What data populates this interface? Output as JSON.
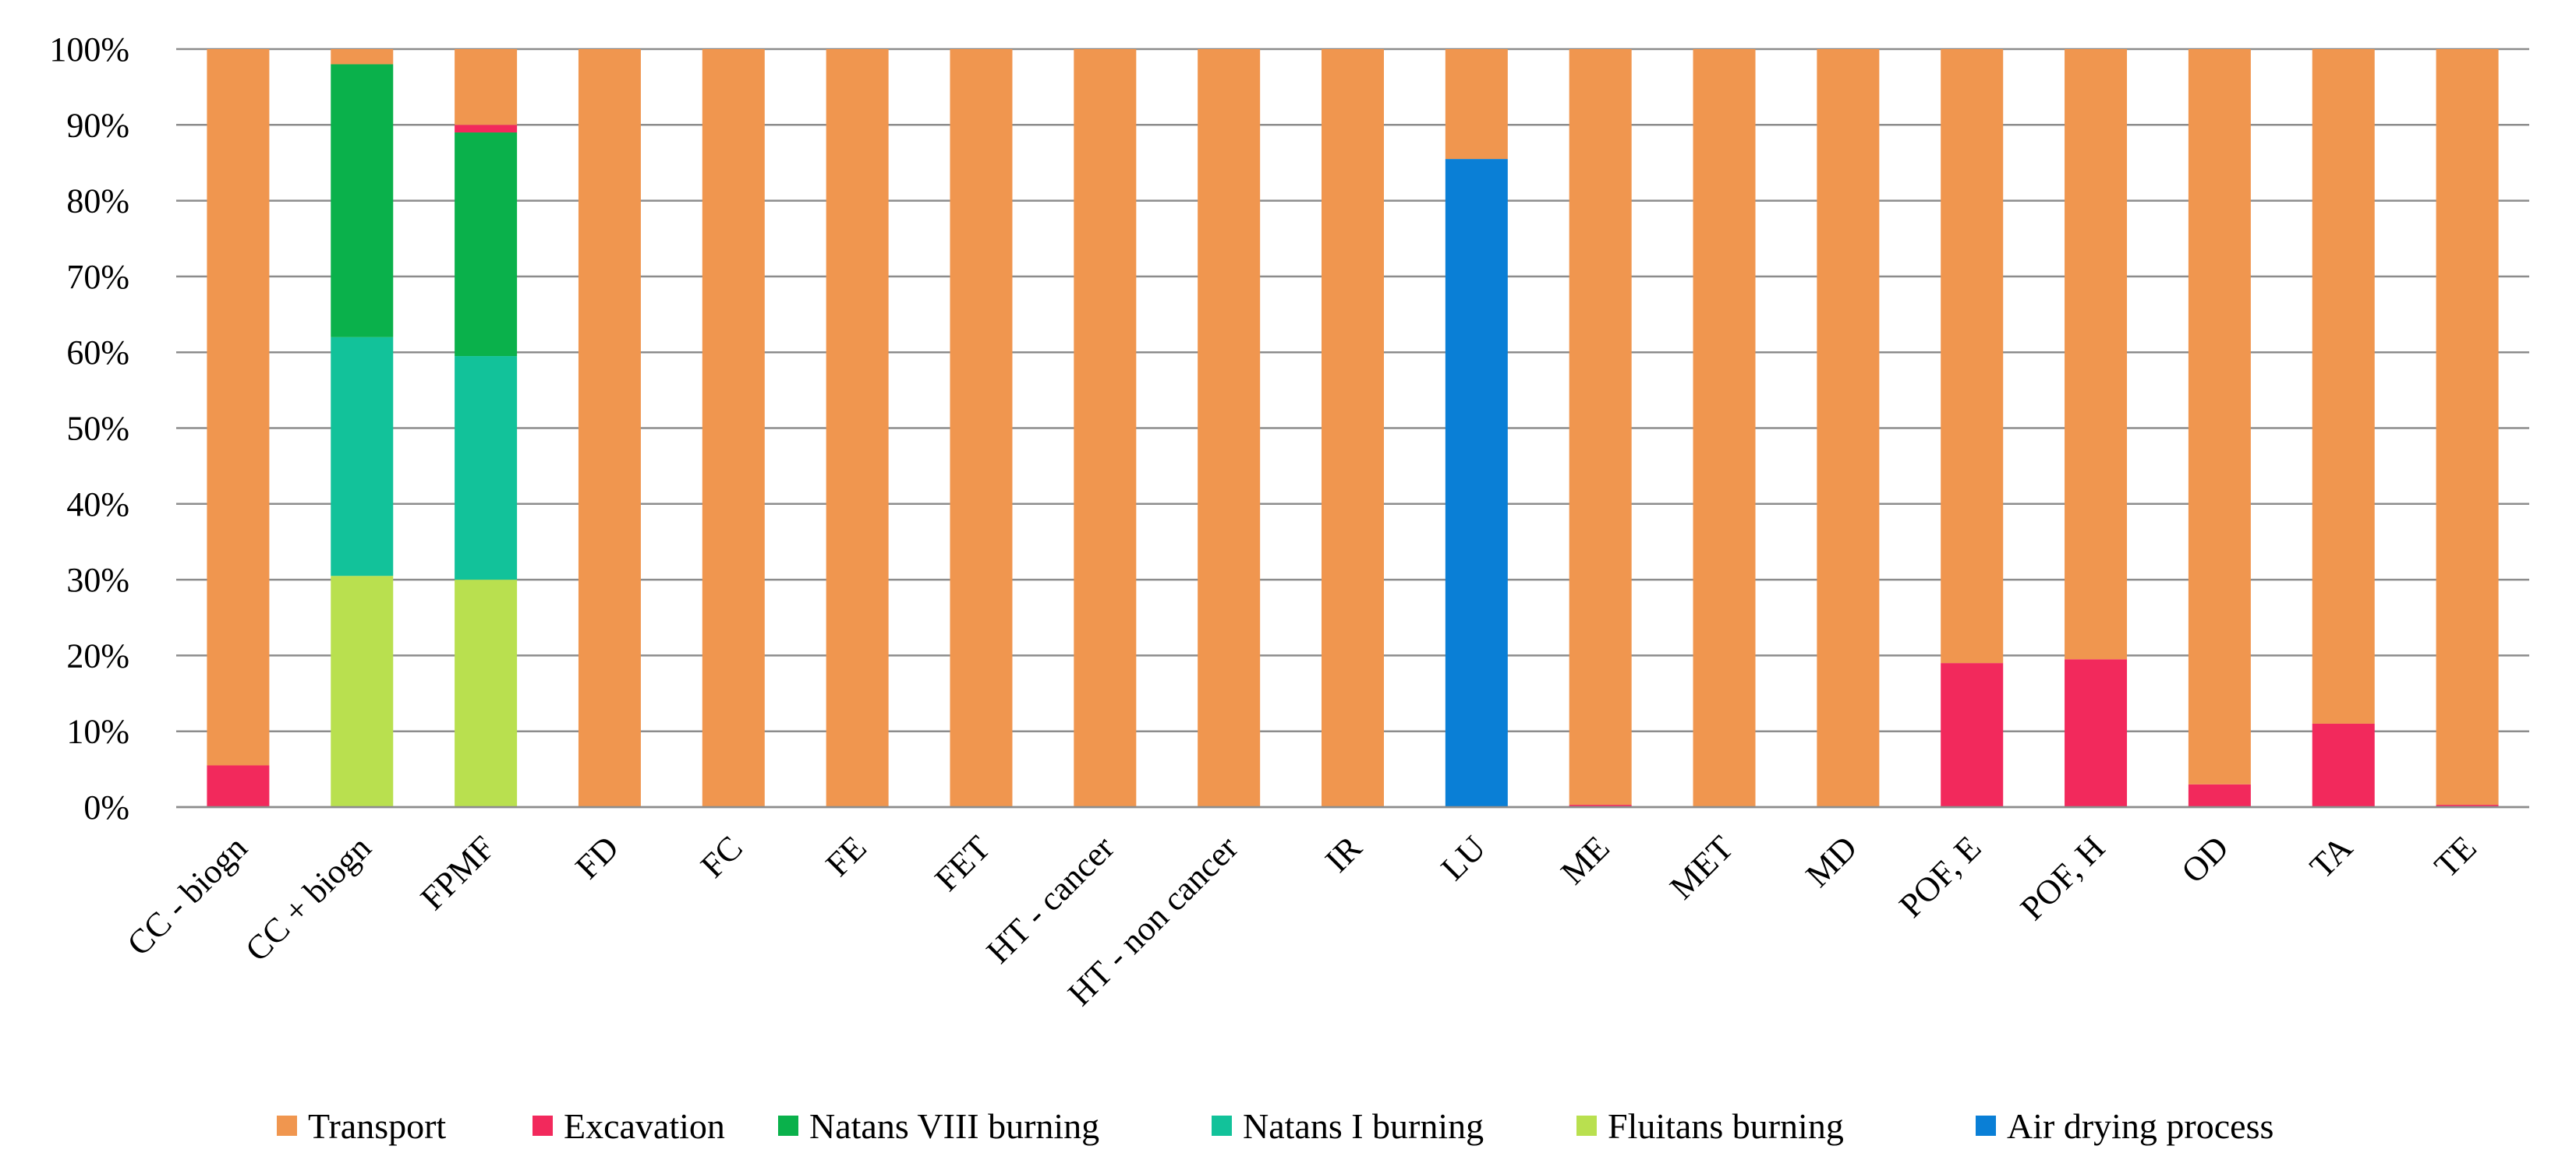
{
  "chart_data": {
    "type": "bar",
    "stacked": true,
    "normalized_percent": true,
    "title": "",
    "xlabel": "",
    "ylabel": "",
    "ylim": [
      0,
      100
    ],
    "y_ticks": [
      "0%",
      "10%",
      "20%",
      "30%",
      "40%",
      "50%",
      "60%",
      "70%",
      "80%",
      "90%",
      "100%"
    ],
    "grid": true,
    "legend_position": "bottom",
    "categories": [
      "CC - biogn",
      "CC + biogn",
      "FPMF",
      "FD",
      "FC",
      "FE",
      "FET",
      "HT - cancer",
      "HT - non cancer",
      "IR",
      "LU",
      "ME",
      "MET",
      "MD",
      "POF, E",
      "POF, H",
      "OD",
      "TA",
      "TE"
    ],
    "series": [
      {
        "name": "Fluitans burning",
        "color": "#b9e04f",
        "values": [
          0,
          30.5,
          30,
          0,
          0,
          0,
          0,
          0,
          0,
          0,
          0,
          0,
          0,
          0,
          0,
          0,
          0,
          0,
          0
        ]
      },
      {
        "name": "Natans I burning",
        "color": "#12c29a",
        "values": [
          0,
          31.5,
          29.5,
          0,
          0,
          0,
          0,
          0,
          0,
          0,
          0,
          0,
          0,
          0,
          0,
          0,
          0,
          0,
          0
        ]
      },
      {
        "name": "Natans VIII burning",
        "color": "#0ab14b",
        "values": [
          0,
          36,
          29.5,
          0,
          0,
          0,
          0,
          0,
          0,
          0,
          0,
          0,
          0,
          0,
          0,
          0,
          0,
          0,
          0
        ]
      },
      {
        "name": "Air drying process",
        "color": "#0a7fd6",
        "values": [
          0,
          0,
          0,
          0,
          0,
          0,
          0,
          0,
          0,
          0,
          85.5,
          0,
          0,
          0,
          0,
          0,
          0,
          0,
          0
        ]
      },
      {
        "name": "Excavation",
        "color": "#f2295c",
        "values": [
          5.5,
          0,
          1,
          0,
          0,
          0,
          0,
          0,
          0,
          0,
          0,
          0.3,
          0,
          0,
          19,
          19.5,
          3,
          11,
          0.3
        ]
      },
      {
        "name": "Transport",
        "color": "#f0964f",
        "values": [
          94.5,
          2,
          10,
          100,
          100,
          100,
          100,
          100,
          100,
          100,
          14.5,
          99.7,
          100,
          100,
          81,
          80.5,
          97,
          89,
          99.7
        ]
      }
    ],
    "legend": [
      "Transport",
      "Excavation",
      "Natans VIII burning",
      "Natans I burning",
      "Fluitans burning",
      "Air drying process"
    ]
  },
  "style": {
    "grid_color": "#8c8c8c",
    "axis_color": "#8c8c8c",
    "background": "#ffffff"
  }
}
